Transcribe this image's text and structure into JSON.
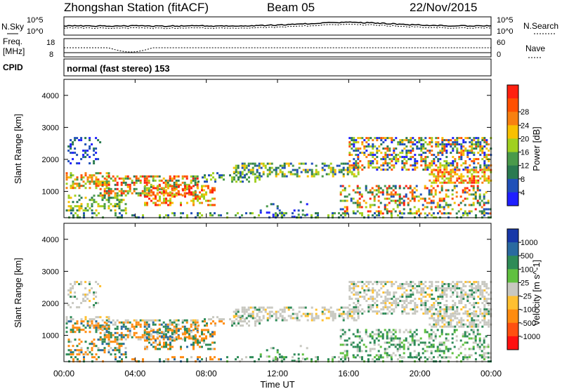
{
  "header": {
    "title": "Zhongshan Station (fitACF)",
    "beam": "Beam 05",
    "date": "22/Nov/2015"
  },
  "top_panels": {
    "nsky_label": "N.Sky",
    "nsearch_label": "N.Search",
    "log_top_left": "10^5",
    "log_bottom_left": "10^0",
    "log_top_right": "10^5",
    "log_bottom_right": "10^0",
    "freq_label_1": "Freq.",
    "freq_label_2": "[MHz]",
    "freq_top": "18",
    "freq_bottom": "8",
    "nave_label": "Nave",
    "nave_top": "60",
    "nave_bottom": "0",
    "cpid_label": "CPID",
    "cpid_value": "normal (fast stereo) 153"
  },
  "colors": {
    "power_scale": [
      "#1f1fff",
      "#2050b8",
      "#2a7a50",
      "#4a9a4a",
      "#a0d020",
      "#f8c000",
      "#f88010",
      "#ff5000",
      "#ff2010"
    ],
    "velocity_scale": [
      "#ff1010",
      "#ff5010",
      "#ff8c10",
      "#ffc030",
      "#c8c8c0",
      "#60c040",
      "#2e8b57",
      "#2a6aa0",
      "#1838a8"
    ]
  },
  "chart_data": [
    {
      "type": "heatmap",
      "title": "",
      "xlabel": "",
      "ylabel": "Slant Range [km]",
      "xlim": [
        "00:00",
        "00:00"
      ],
      "ylim": [
        180,
        4500
      ],
      "y_ticks": [
        "1000",
        "2000",
        "3000",
        "4000"
      ],
      "colorbar_label": "Power [dB]",
      "colorbar_ticks": [
        "4",
        "8",
        "12",
        "16",
        "20",
        "24",
        "28"
      ]
    },
    {
      "type": "heatmap",
      "title": "",
      "xlabel": "Time UT",
      "ylabel": "Slant Range [km]",
      "x_ticks": [
        "00:00",
        "04:00",
        "08:00",
        "12:00",
        "16:00",
        "20:00",
        "00:00"
      ],
      "xlim": [
        "00:00",
        "00:00"
      ],
      "ylim": [
        180,
        4500
      ],
      "y_ticks": [
        "1000",
        "2000",
        "3000",
        "4000"
      ],
      "colorbar_label": "Velocity [m s^-1]",
      "colorbar_ticks": [
        "1000",
        "500",
        "100",
        "25",
        "-25",
        "-100",
        "-500",
        "-1000"
      ]
    }
  ]
}
